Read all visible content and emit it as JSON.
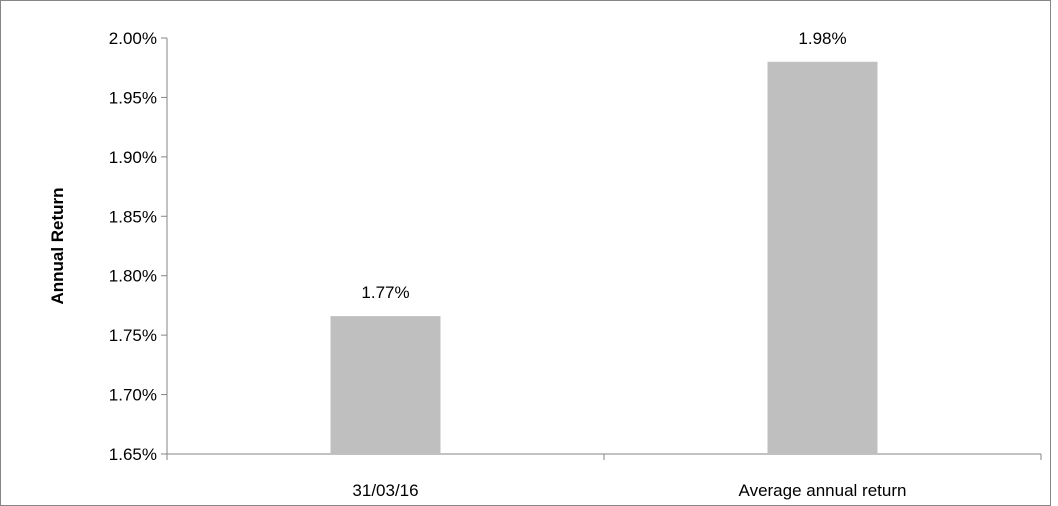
{
  "chart_data": {
    "type": "bar",
    "title": "",
    "xlabel": "",
    "ylabel": "Annual Return",
    "categories": [
      "31/03/16",
      "Average annual return"
    ],
    "values": [
      1.766,
      1.98
    ],
    "data_labels": [
      "1.77%",
      "1.98%"
    ],
    "ylim": [
      1.65,
      2.0
    ],
    "y_ticks": [
      1.65,
      1.7,
      1.75,
      1.8,
      1.85,
      1.9,
      1.95,
      2.0
    ],
    "y_tick_labels": [
      "1.65%",
      "1.70%",
      "1.75%",
      "1.80%",
      "1.85%",
      "1.90%",
      "1.95%",
      "2.00%"
    ],
    "grid": false,
    "legend": "none",
    "bar_color": "#bfbfbf",
    "axis_color": "#868686"
  }
}
